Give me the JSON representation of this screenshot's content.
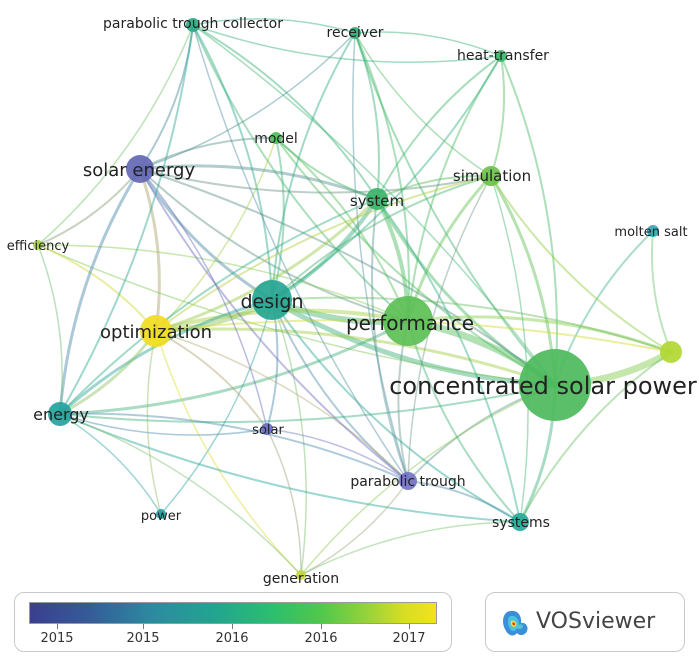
{
  "nodes": [
    {
      "id": "csp",
      "label": "concentrated solar power",
      "color": "#4dba5c"
    },
    {
      "id": "performance",
      "label": "performance",
      "color": "#5cbf55"
    },
    {
      "id": "design",
      "label": "design",
      "color": "#25a591"
    },
    {
      "id": "optimization",
      "label": "optimization",
      "color": "#f2dc20"
    },
    {
      "id": "solar-energy",
      "label": "solar energy",
      "color": "#6367b3"
    },
    {
      "id": "energy",
      "label": "energy",
      "color": "#24a39d"
    },
    {
      "id": "system",
      "label": "system",
      "color": "#3cb46a"
    },
    {
      "id": "simulation",
      "label": "simulation",
      "color": "#6cc24a"
    },
    {
      "id": "ptc",
      "label": "parabolic trough collector",
      "color": "#2cab86"
    },
    {
      "id": "receiver",
      "label": "receiver",
      "color": "#31b07a"
    },
    {
      "id": "heat-transfer",
      "label": "heat-transfer",
      "color": "#3ab86d"
    },
    {
      "id": "model",
      "label": "model",
      "color": "#4cbf5c"
    },
    {
      "id": "efficiency",
      "label": "efficiency",
      "color": "#a8d23d"
    },
    {
      "id": "molten-salt",
      "label": "molten salt",
      "color": "#32a7b6"
    },
    {
      "id": "unlabeled",
      "label": "",
      "color": "#b2d834"
    },
    {
      "id": "solar",
      "label": "solar",
      "color": "#6b6cc0"
    },
    {
      "id": "parabolic-trough",
      "label": "parabolic trough",
      "color": "#7573c4"
    },
    {
      "id": "systems",
      "label": "systems",
      "color": "#26a999"
    },
    {
      "id": "power",
      "label": "power",
      "color": "#2a9fa3"
    },
    {
      "id": "generation",
      "label": "generation",
      "color": "#c6d83a"
    }
  ],
  "legend": {
    "tick_labels": [
      "2015",
      "2015",
      "2016",
      "2016",
      "2017"
    ]
  },
  "brand": {
    "name": "VOSviewer"
  }
}
